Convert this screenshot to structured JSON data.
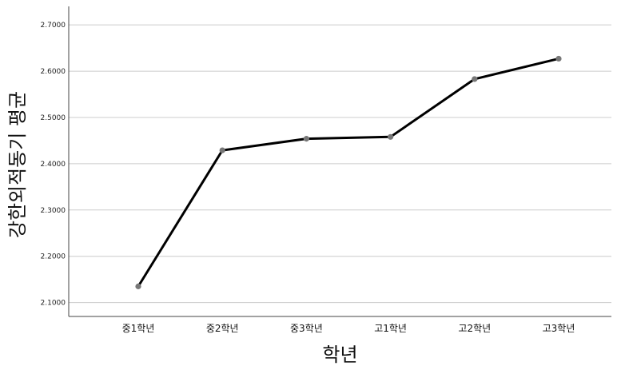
{
  "chart_data": {
    "type": "line",
    "title": "",
    "xlabel": "학년",
    "ylabel": "강한외적동기 평균",
    "categories": [
      "중1학년",
      "중2학년",
      "중3학년",
      "고1학년",
      "고2학년",
      "고3학년"
    ],
    "series": [
      {
        "values": [
          2.135,
          2.429,
          2.454,
          2.458,
          2.583,
          2.627
        ]
      }
    ],
    "ylim": [
      2.07,
      2.74
    ],
    "yticks": [
      2.1,
      2.2,
      2.3,
      2.4,
      2.5,
      2.6,
      2.7
    ],
    "ytick_labels": [
      "2.1000",
      "2.2000",
      "2.3000",
      "2.4000",
      "2.5000",
      "2.6000",
      "2.7000"
    ],
    "grid": "horizontal",
    "line_color": "#000000",
    "marker_color": "#777777",
    "grid_color": "#cccccc"
  }
}
